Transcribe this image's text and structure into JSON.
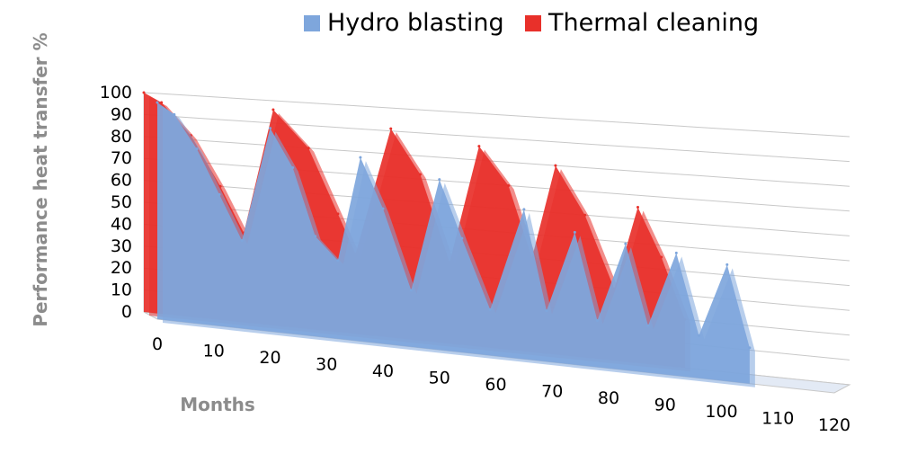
{
  "chart_data": {
    "type": "area",
    "title": "",
    "xlabel": "Months",
    "ylabel": "Performance heat transfer %",
    "xlim": [
      0,
      120
    ],
    "ylim": [
      0,
      100
    ],
    "x_ticks": [
      "0",
      "10",
      "20",
      "30",
      "40",
      "50",
      "60",
      "70",
      "80",
      "90",
      "100",
      "110",
      "120"
    ],
    "y_ticks": [
      "0",
      "10",
      "20",
      "30",
      "40",
      "50",
      "60",
      "70",
      "80",
      "90",
      "100"
    ],
    "grid": true,
    "legend_position": "top",
    "series": [
      {
        "name": "Hydro blasting",
        "color": "#7ea6dc",
        "points": [
          [
            0,
            100
          ],
          [
            3,
            95
          ],
          [
            7,
            80
          ],
          [
            11,
            60
          ],
          [
            15,
            40
          ],
          [
            20,
            92
          ],
          [
            24,
            75
          ],
          [
            28,
            45
          ],
          [
            32,
            35
          ],
          [
            36,
            82
          ],
          [
            40,
            60
          ],
          [
            45,
            25
          ],
          [
            50,
            75
          ],
          [
            54,
            50
          ],
          [
            59,
            20
          ],
          [
            65,
            65
          ],
          [
            69,
            22
          ],
          [
            74,
            57
          ],
          [
            78,
            20
          ],
          [
            83,
            54
          ],
          [
            87,
            20
          ],
          [
            92,
            52
          ],
          [
            96,
            18
          ],
          [
            101,
            49
          ],
          [
            105,
            15
          ]
        ]
      },
      {
        "name": "Thermal cleaning",
        "color": "#e8302a",
        "points": [
          [
            0,
            100
          ],
          [
            3,
            96
          ],
          [
            8,
            82
          ],
          [
            13,
            60
          ],
          [
            17,
            40
          ],
          [
            22,
            96
          ],
          [
            28,
            80
          ],
          [
            33,
            52
          ],
          [
            36,
            35
          ],
          [
            42,
            91
          ],
          [
            47,
            72
          ],
          [
            52,
            35
          ],
          [
            57,
            86
          ],
          [
            62,
            70
          ],
          [
            66,
            40
          ],
          [
            70,
            80
          ],
          [
            75,
            60
          ],
          [
            80,
            30
          ],
          [
            84,
            65
          ],
          [
            88,
            45
          ],
          [
            92,
            20
          ]
        ]
      }
    ]
  }
}
